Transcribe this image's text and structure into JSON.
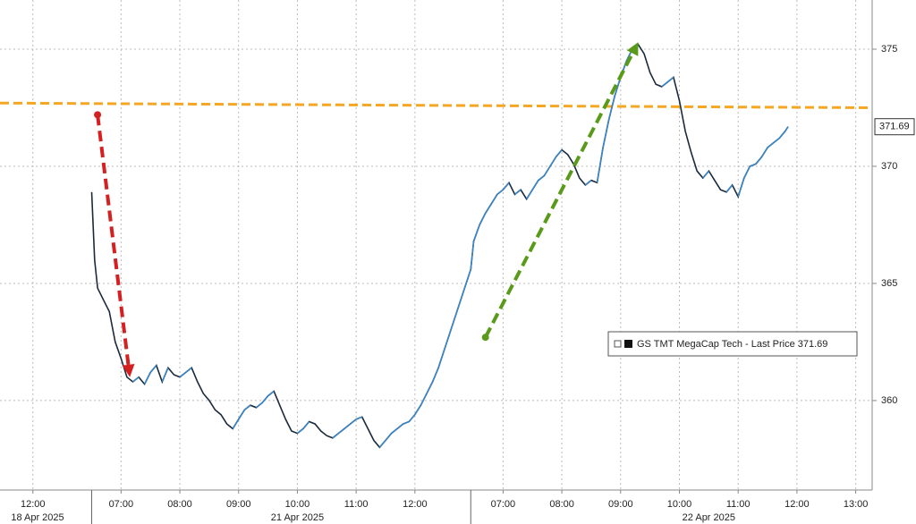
{
  "chart_data": {
    "type": "line",
    "series": [
      {
        "name": "GS TMT MegaCap Tech - Last Price 371.69",
        "color": "#1b2a3a",
        "values": [
          368.9,
          366.0,
          364.8,
          364.3,
          363.8,
          362.5,
          361.8,
          361.0,
          360.8,
          361.0,
          360.7,
          361.2,
          361.5,
          360.8,
          361.4,
          361.1,
          361.0,
          361.2,
          361.4,
          360.8,
          360.3,
          360.0,
          359.6,
          359.4,
          359.0,
          358.8,
          359.2,
          359.6,
          359.8,
          359.7,
          359.9,
          360.2,
          360.4,
          359.8,
          359.2,
          358.7,
          358.6,
          358.8,
          359.1,
          359.0,
          358.7,
          358.5,
          358.4,
          358.6,
          358.8,
          359.0,
          359.2,
          359.3,
          358.8,
          358.3,
          358.0,
          358.3,
          358.6,
          358.8,
          359.0,
          359.1,
          359.4,
          359.8,
          360.3,
          360.8,
          361.4,
          365.6,
          366.8,
          367.5,
          368.0,
          368.4,
          368.8,
          369.0,
          369.3,
          368.8,
          369.0,
          368.6,
          369.0,
          369.4,
          369.6,
          370.0,
          370.4,
          370.7,
          370.5,
          370.1,
          369.5,
          369.2,
          369.4,
          369.3,
          370.8,
          372.0,
          373.0,
          373.8,
          374.5,
          375.0,
          375.2,
          374.8,
          374.0,
          373.5,
          373.4,
          373.6,
          373.8,
          372.8,
          371.5,
          370.6,
          369.8,
          369.5,
          369.8,
          369.4,
          369.0,
          368.9,
          369.2,
          368.7,
          369.5,
          370.0,
          370.1,
          370.4,
          370.8,
          371.0,
          371.2,
          371.5,
          371.69
        ]
      }
    ],
    "x": [
      1.0,
      1.05,
      1.1,
      1.2,
      1.3,
      1.4,
      1.5,
      1.6,
      1.7,
      1.8,
      1.9,
      2.0,
      2.1,
      2.2,
      2.3,
      2.4,
      2.5,
      2.6,
      2.7,
      2.8,
      2.9,
      3.0,
      3.1,
      3.2,
      3.3,
      3.4,
      3.5,
      3.6,
      3.7,
      3.8,
      3.9,
      4.0,
      4.1,
      4.2,
      4.3,
      4.4,
      4.5,
      4.6,
      4.7,
      4.8,
      4.9,
      5.0,
      5.1,
      5.2,
      5.3,
      5.4,
      5.5,
      5.6,
      5.7,
      5.8,
      5.9,
      6.0,
      6.1,
      6.2,
      6.3,
      6.4,
      6.5,
      6.6,
      6.7,
      6.8,
      6.9,
      7.45,
      7.5,
      7.6,
      7.7,
      7.8,
      7.9,
      8.0,
      8.1,
      8.2,
      8.3,
      8.4,
      8.5,
      8.6,
      8.7,
      8.8,
      8.9,
      9.0,
      9.1,
      9.2,
      9.3,
      9.4,
      9.5,
      9.6,
      9.7,
      9.8,
      9.9,
      10.0,
      10.1,
      10.2,
      10.3,
      10.4,
      10.5,
      10.6,
      10.7,
      10.8,
      10.9,
      11.0,
      11.1,
      11.2,
      11.3,
      11.4,
      11.5,
      11.6,
      11.7,
      11.8,
      11.9,
      12.0,
      12.1,
      12.2,
      12.3,
      12.4,
      12.5,
      12.6,
      12.7,
      12.8,
      12.85
    ],
    "xlim": [
      -0.56,
      14.28
    ],
    "xticks": [
      {
        "value": 0,
        "label": "12:00"
      },
      {
        "value": 1.5,
        "label": "07:00"
      },
      {
        "value": 2.5,
        "label": "08:00"
      },
      {
        "value": 3.5,
        "label": "09:00"
      },
      {
        "value": 4.5,
        "label": "10:00"
      },
      {
        "value": 5.5,
        "label": "11:00"
      },
      {
        "value": 6.5,
        "label": "12:00"
      },
      {
        "value": 8,
        "label": "07:00"
      },
      {
        "value": 9,
        "label": "08:00"
      },
      {
        "value": 10,
        "label": "09:00"
      },
      {
        "value": 11,
        "label": "10:00"
      },
      {
        "value": 12,
        "label": "11:00"
      },
      {
        "value": 13,
        "label": "12:00"
      },
      {
        "value": 14,
        "label": "13:00"
      }
    ],
    "date_labels": [
      {
        "value": 0,
        "label": "18 Apr 2025"
      },
      {
        "value": 4.5,
        "label": "21 Apr 2025"
      },
      {
        "value": 11.5,
        "label": "22 Apr 2025"
      }
    ],
    "session_breaks": [
      1.0,
      7.45
    ],
    "ylim": [
      356.18,
      377.1
    ],
    "yticks": [
      360,
      365,
      370,
      375
    ],
    "grid": true,
    "last_value": 371.69,
    "reference_line": {
      "color": "#f5a623",
      "x": [
        -0.56,
        14.28
      ],
      "values": [
        372.7,
        372.5
      ]
    },
    "arrows": [
      {
        "color": "#d42020",
        "x": [
          1.1,
          1.65
        ],
        "values": [
          372.2,
          361.0
        ]
      },
      {
        "color": "#5a9a1a",
        "x": [
          7.7,
          10.3
        ],
        "values": [
          362.7,
          375.3
        ]
      }
    ]
  }
}
